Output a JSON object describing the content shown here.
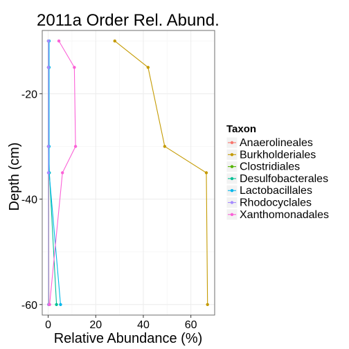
{
  "chart_data": {
    "type": "line",
    "title": "2011a Order Rel. Abund.",
    "xlabel": "Relative Abundance (%)",
    "ylabel": "Depth (cm)",
    "xlim": [
      -2.5,
      70
    ],
    "ylim": [
      -62,
      -8
    ],
    "x_ticks": [
      0,
      20,
      40,
      60
    ],
    "x_tick_labels": [
      "0",
      "20",
      "40",
      "60"
    ],
    "y_ticks": [
      -20,
      -40,
      -60
    ],
    "y_tick_labels": [
      "-20",
      "-40",
      "-60"
    ],
    "grid": true,
    "legend_position": "right",
    "legend_title": "Taxon",
    "depths": [
      -10,
      -15,
      -30,
      -35,
      -60
    ],
    "series": [
      {
        "name": "Anaerolineales",
        "color": "#F8766D",
        "shape": "circle",
        "x": [
          0.2,
          0.2,
          0.2,
          0.2,
          0.3
        ]
      },
      {
        "name": "Burkholderiales",
        "color": "#C49A00",
        "shape": "circle",
        "x": [
          28,
          42,
          49,
          66.5,
          67
        ]
      },
      {
        "name": "Clostridiales",
        "color": "#53B400",
        "shape": "circle",
        "x": [
          0.1,
          0.1,
          0.1,
          0.2,
          0.2
        ]
      },
      {
        "name": "Desulfobacterales",
        "color": "#00C094",
        "shape": "circle",
        "x": [
          0.2,
          0.2,
          0.2,
          0.5,
          3.5
        ]
      },
      {
        "name": "Lactobacillales",
        "color": "#00B6EB",
        "shape": "circle",
        "x": [
          0.4,
          0.4,
          0.4,
          0.4,
          5.2
        ]
      },
      {
        "name": "Rhodocyclales",
        "color": "#A58AFF",
        "shape": "circle",
        "x": [
          0.1,
          0.1,
          0.1,
          0.1,
          0.2
        ]
      },
      {
        "name": "Xanthomonadales",
        "color": "#FB61D7",
        "shape": "circle",
        "x": [
          4.5,
          11,
          11.5,
          6,
          0.6
        ]
      }
    ]
  }
}
